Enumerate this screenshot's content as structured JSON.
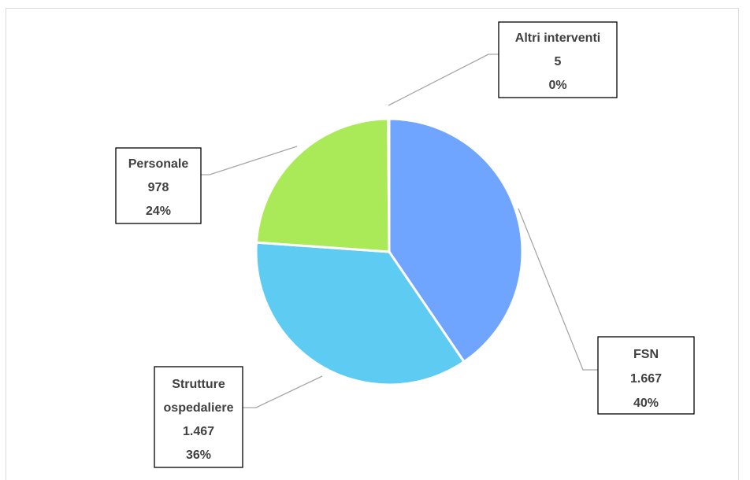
{
  "chart_data": {
    "type": "pie",
    "title": "",
    "slices": [
      {
        "name": "FSN",
        "value": "1.667",
        "numeric": 1667,
        "percent": "40%",
        "color": "#6fa5fe"
      },
      {
        "name": "Strutture ospedaliere",
        "value": "1.467",
        "numeric": 1467,
        "percent": "36%",
        "color": "#5ecbf3"
      },
      {
        "name": "Personale",
        "value": "978",
        "numeric": 978,
        "percent": "24%",
        "color": "#aaea58"
      },
      {
        "name": "Altri interventi",
        "value": "5",
        "numeric": 5,
        "percent": "0%",
        "color": "#5ecbf3"
      }
    ]
  }
}
